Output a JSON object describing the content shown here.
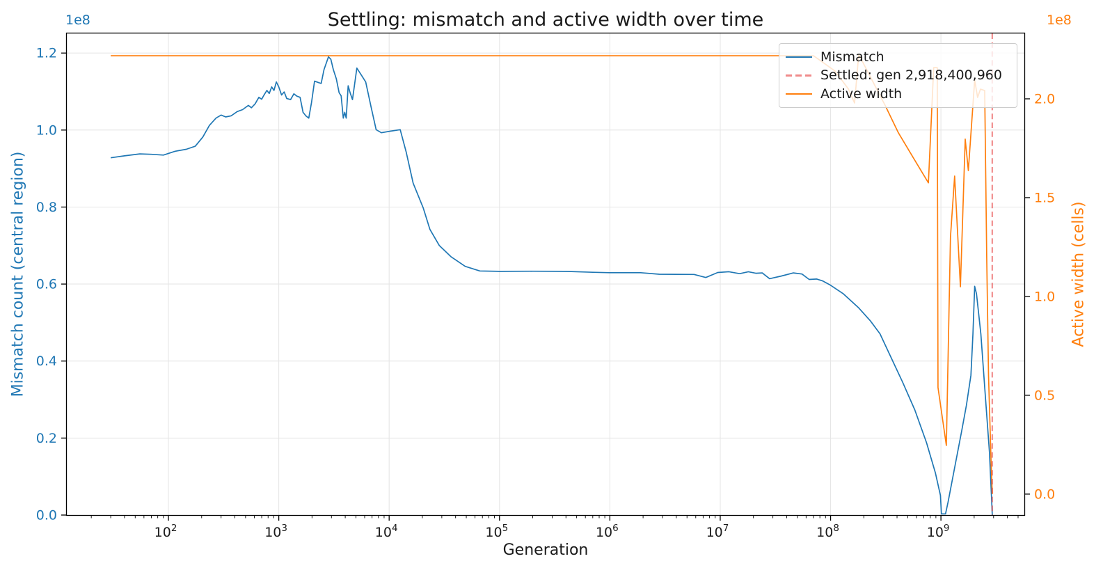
{
  "figure": {
    "title": "Settling: mismatch and active width over time",
    "xlabel": "Generation",
    "y1label": "Mismatch count (central region)",
    "y2label": "Active width (cells)",
    "y1_offset_text": "1e8",
    "y2_offset_text": "1e8"
  },
  "colors": {
    "mismatch": "#1f77b4",
    "active_width": "#ff7f0e",
    "settled_line": "#e74c4c",
    "settled_line_opacity": 0.6,
    "grid": "#e6e6e6",
    "spine": "#000000",
    "tick_text": "#1a1a1a",
    "background": "#ffffff"
  },
  "legend": {
    "items": [
      {
        "label": "Mismatch",
        "color": "#1f77b4",
        "style": "solid"
      },
      {
        "label": "Settled: gen 2,918,400,960",
        "color": "#e74c4c",
        "style": "dashed"
      },
      {
        "label": "Active width",
        "color": "#ff7f0e",
        "style": "solid"
      }
    ]
  },
  "chart_data": {
    "type": "line",
    "title": "Settling: mismatch and active width over time",
    "xlabel": "Generation",
    "x_scale": "log",
    "xlim": [
      12,
      5700000000
    ],
    "x_major_tick_exponents": [
      2,
      3,
      4,
      5,
      6,
      7,
      8,
      9
    ],
    "x_tick_base": "10",
    "grid": true,
    "legend_position": "upper right",
    "settled": {
      "label": "Settled: gen 2,918,400,960",
      "generation": 2918400960
    },
    "y1": {
      "label": "Mismatch count (central region)",
      "units_multiplier": "1e8",
      "lim": [
        0,
        1.251
      ],
      "ticks": [
        {
          "v": 0.0,
          "label": "0.0"
        },
        {
          "v": 0.2,
          "label": "0.2"
        },
        {
          "v": 0.4,
          "label": "0.4"
        },
        {
          "v": 0.6,
          "label": "0.6"
        },
        {
          "v": 0.8,
          "label": "0.8"
        },
        {
          "v": 1.0,
          "label": "1.0"
        },
        {
          "v": 1.2,
          "label": "1.2"
        }
      ]
    },
    "y2": {
      "label": "Active width (cells)",
      "units_multiplier": "1e8",
      "lim": [
        -0.106,
        2.331
      ],
      "ticks": [
        {
          "v": 0.0,
          "label": "0.0"
        },
        {
          "v": 0.5,
          "label": "0.5"
        },
        {
          "v": 1.0,
          "label": "1.0"
        },
        {
          "v": 1.5,
          "label": "1.5"
        },
        {
          "v": 2.0,
          "label": "2.0"
        }
      ]
    },
    "series": [
      {
        "name": "Mismatch",
        "axis": "y1",
        "color": "#1f77b4",
        "points": [
          [
            30,
            0.928
          ],
          [
            40,
            0.933
          ],
          [
            55,
            0.938
          ],
          [
            70,
            0.937
          ],
          [
            90,
            0.935
          ],
          [
            115,
            0.945
          ],
          [
            145,
            0.95
          ],
          [
            175,
            0.958
          ],
          [
            205,
            0.982
          ],
          [
            235,
            1.012
          ],
          [
            270,
            1.031
          ],
          [
            300,
            1.039
          ],
          [
            330,
            1.034
          ],
          [
            370,
            1.037
          ],
          [
            420,
            1.048
          ],
          [
            470,
            1.053
          ],
          [
            530,
            1.064
          ],
          [
            565,
            1.058
          ],
          [
            610,
            1.068
          ],
          [
            660,
            1.085
          ],
          [
            700,
            1.08
          ],
          [
            735,
            1.091
          ],
          [
            780,
            1.103
          ],
          [
            820,
            1.095
          ],
          [
            862,
            1.112
          ],
          [
            905,
            1.103
          ],
          [
            950,
            1.125
          ],
          [
            1000,
            1.112
          ],
          [
            1060,
            1.091
          ],
          [
            1120,
            1.099
          ],
          [
            1180,
            1.082
          ],
          [
            1280,
            1.079
          ],
          [
            1370,
            1.094
          ],
          [
            1460,
            1.088
          ],
          [
            1560,
            1.085
          ],
          [
            1660,
            1.046
          ],
          [
            1760,
            1.037
          ],
          [
            1870,
            1.031
          ],
          [
            1980,
            1.072
          ],
          [
            2110,
            1.127
          ],
          [
            2260,
            1.124
          ],
          [
            2420,
            1.121
          ],
          [
            2570,
            1.157
          ],
          [
            2820,
            1.19
          ],
          [
            2960,
            1.184
          ],
          [
            3120,
            1.157
          ],
          [
            3320,
            1.133
          ],
          [
            3520,
            1.097
          ],
          [
            3670,
            1.089
          ],
          [
            3840,
            1.031
          ],
          [
            3960,
            1.046
          ],
          [
            4080,
            1.031
          ],
          [
            4250,
            1.115
          ],
          [
            4430,
            1.097
          ],
          [
            4650,
            1.079
          ],
          [
            5100,
            1.161
          ],
          [
            5560,
            1.144
          ],
          [
            6130,
            1.125
          ],
          [
            6850,
            1.061
          ],
          [
            7620,
            1.001
          ],
          [
            8500,
            0.993
          ],
          [
            10200,
            0.997
          ],
          [
            12600,
            1.001
          ],
          [
            14300,
            0.942
          ],
          [
            16500,
            0.862
          ],
          [
            20400,
            0.797
          ],
          [
            23400,
            0.742
          ],
          [
            28500,
            0.7
          ],
          [
            36300,
            0.671
          ],
          [
            48900,
            0.646
          ],
          [
            66300,
            0.634
          ],
          [
            100000,
            0.633
          ],
          [
            200000,
            0.6332
          ],
          [
            400000,
            0.633
          ],
          [
            700000,
            0.6305
          ],
          [
            1000000,
            0.6295
          ],
          [
            1900000,
            0.6295
          ],
          [
            2800000,
            0.6255
          ],
          [
            5800000,
            0.625
          ],
          [
            7400000,
            0.617
          ],
          [
            9500000,
            0.63
          ],
          [
            12000000,
            0.632
          ],
          [
            15000000,
            0.627
          ],
          [
            18000000,
            0.632
          ],
          [
            21000000,
            0.628
          ],
          [
            24000000,
            0.629
          ],
          [
            28000000,
            0.614
          ],
          [
            36000000,
            0.621
          ],
          [
            46000000,
            0.629
          ],
          [
            55000000,
            0.626
          ],
          [
            64000000,
            0.612
          ],
          [
            75000000,
            0.613
          ],
          [
            85000000,
            0.608
          ],
          [
            100000000,
            0.597
          ],
          [
            130000000,
            0.575
          ],
          [
            180000000,
            0.538
          ],
          [
            230000000,
            0.504
          ],
          [
            280000000,
            0.471
          ],
          [
            360000000,
            0.404
          ],
          [
            450000000,
            0.345
          ],
          [
            580000000,
            0.273
          ],
          [
            740000000,
            0.188
          ],
          [
            890000000,
            0.11
          ],
          [
            990000000,
            0.051
          ],
          [
            1010000000,
            0.003
          ],
          [
            1100000000,
            0.003
          ],
          [
            1160000000,
            0.034
          ],
          [
            1330000000,
            0.123
          ],
          [
            1540000000,
            0.218
          ],
          [
            1700000000,
            0.285
          ],
          [
            1870000000,
            0.363
          ],
          [
            1950000000,
            0.47
          ],
          [
            2020000000,
            0.594
          ],
          [
            2100000000,
            0.575
          ],
          [
            2300000000,
            0.47
          ],
          [
            2500000000,
            0.327
          ],
          [
            2750000000,
            0.164
          ],
          [
            2880000000,
            0.038
          ],
          [
            2918400960,
            0.0
          ]
        ]
      },
      {
        "name": "Active width",
        "axis": "y2",
        "color": "#ff7f0e",
        "points": [
          [
            30,
            2.218
          ],
          [
            1000,
            2.218
          ],
          [
            1000000,
            2.218
          ],
          [
            70000000,
            2.218
          ],
          [
            110000000,
            2.14
          ],
          [
            145000000,
            2.05
          ],
          [
            165000000,
            1.979
          ],
          [
            180000000,
            2.225
          ],
          [
            230000000,
            2.11
          ],
          [
            310000000,
            1.97
          ],
          [
            410000000,
            1.83
          ],
          [
            550000000,
            1.71
          ],
          [
            770000000,
            1.575
          ],
          [
            860000000,
            2.158
          ],
          [
            925000000,
            2.158
          ],
          [
            940000000,
            0.539
          ],
          [
            1120000000,
            0.246
          ],
          [
            1220000000,
            1.3
          ],
          [
            1330000000,
            1.609
          ],
          [
            1500000000,
            1.049
          ],
          [
            1660000000,
            1.796
          ],
          [
            1770000000,
            1.637
          ],
          [
            2020000000,
            2.095
          ],
          [
            2150000000,
            2.007
          ],
          [
            2280000000,
            2.049
          ],
          [
            2490000000,
            2.042
          ],
          [
            2600000000,
            1.2
          ],
          [
            2700000000,
            0.6
          ],
          [
            2850000000,
            0.15
          ],
          [
            2918400960,
            0.0
          ]
        ]
      }
    ]
  }
}
